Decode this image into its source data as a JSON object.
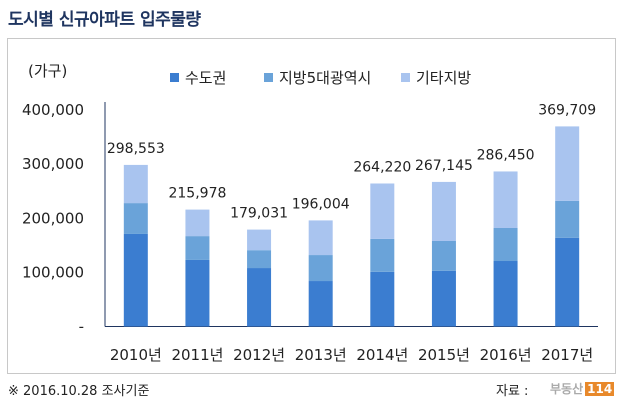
{
  "title": "도시별 신규아파트 입주물량",
  "footer": {
    "note": "※ 2016.10.28 조사기준",
    "source_label": "자료 :",
    "source_logo": "부동산114"
  },
  "colors": {
    "capital": "#3b7dd0",
    "metro": "#6aa3d9",
    "other": "#a9c4ef"
  },
  "chart_data": {
    "type": "bar",
    "stacked": true,
    "title": "도시별 신규아파트 입주물량",
    "ylabel": "(가구)",
    "xlabel": "",
    "ylim": [
      0,
      400000
    ],
    "yticks": [
      0,
      100000,
      200000,
      300000,
      400000
    ],
    "ytick_labels": [
      "-",
      "100,000",
      "200,000",
      "300,000",
      "400,000"
    ],
    "legend_position": "top",
    "categories": [
      "2010년",
      "2011년",
      "2012년",
      "2013년",
      "2014년",
      "2015년",
      "2016년",
      "2017년"
    ],
    "series": [
      {
        "name": "수도권",
        "values": [
          171000,
          123000,
          108000,
          84000,
          101000,
          103000,
          121000,
          164000
        ]
      },
      {
        "name": "지방5대광역시",
        "values": [
          57000,
          44000,
          33000,
          48000,
          61000,
          55000,
          61000,
          68000
        ]
      },
      {
        "name": "기타지방",
        "values": [
          70553,
          48978,
          38031,
          64004,
          102220,
          109145,
          104450,
          137709
        ]
      }
    ],
    "totals": [
      298553,
      215978,
      179031,
      196004,
      264220,
      267145,
      286450,
      369709
    ],
    "total_labels": [
      "298,553",
      "215,978",
      "179,031",
      "196,004",
      "264,220",
      "267,145",
      "286,450",
      "369,709"
    ]
  }
}
